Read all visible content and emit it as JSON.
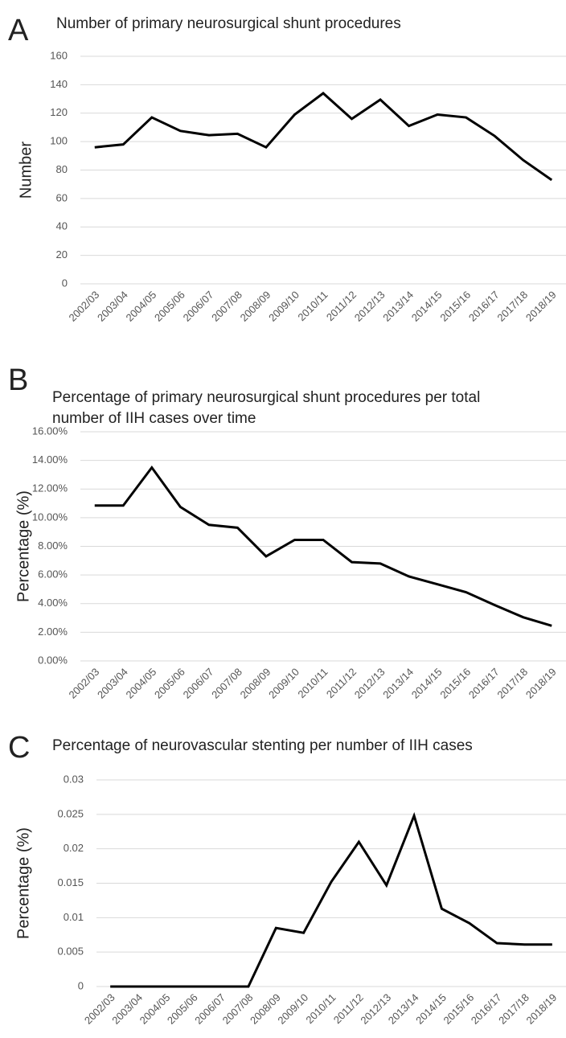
{
  "chart_data": [
    {
      "type": "line",
      "panel": "A",
      "title": [
        "Number of primary neurosurgical shunt procedures"
      ],
      "ylabel": "Number",
      "categories": [
        "2002/03",
        "2003/04",
        "2004/05",
        "2005/06",
        "2006/07",
        "2007/08",
        "2008/09",
        "2009/10",
        "2010/11",
        "2011/12",
        "2012/13",
        "2013/14",
        "2014/15",
        "2015/16",
        "2016/17",
        "2017/18",
        "2018/19"
      ],
      "values": [
        96,
        98,
        117,
        107.5,
        104.5,
        105.5,
        96,
        119,
        134,
        116,
        129.5,
        111,
        119,
        117,
        104,
        87,
        73
      ],
      "color": "#000000",
      "ylim": [
        0,
        160
      ],
      "yticks": [
        0,
        20,
        40,
        60,
        80,
        100,
        120,
        140,
        160
      ],
      "grid": true
    },
    {
      "type": "line",
      "panel": "B",
      "title": [
        "Percentage of primary neurosurgical shunt procedures per total",
        "number of IIH cases over time"
      ],
      "ylabel": "Percentage (%)",
      "categories": [
        "2002/03",
        "2003/04",
        "2004/05",
        "2005/06",
        "2006/07",
        "2007/08",
        "2008/09",
        "2009/10",
        "2010/11",
        "2011/12",
        "2012/13",
        "2013/14",
        "2014/15",
        "2015/16",
        "2016/17",
        "2017/18",
        "2018/19"
      ],
      "values": [
        10.85,
        10.85,
        13.5,
        10.75,
        9.5,
        9.3,
        7.3,
        8.45,
        8.45,
        6.9,
        6.8,
        5.9,
        5.35,
        4.8,
        3.9,
        3.05,
        2.45
      ],
      "color": "#000000",
      "ylim": [
        0,
        16
      ],
      "yticks": [
        {
          "value": 0,
          "label": "0.00%"
        },
        {
          "value": 2,
          "label": "2.00%"
        },
        {
          "value": 4,
          "label": "4.00%"
        },
        {
          "value": 6,
          "label": "6.00%"
        },
        {
          "value": 8,
          "label": "8.00%"
        },
        {
          "value": 10,
          "label": "10.00%"
        },
        {
          "value": 12,
          "label": "12.00%"
        },
        {
          "value": 14,
          "label": "14.00%"
        },
        {
          "value": 16,
          "label": "16.00%"
        }
      ],
      "grid": true
    },
    {
      "type": "line",
      "panel": "C",
      "title": [
        "Percentage of neurovascular stenting per number of IIH cases"
      ],
      "ylabel": "Percentage (%)",
      "categories": [
        "2002/03",
        "2003/04",
        "2004/05",
        "2005/06",
        "2006/07",
        "2007/08",
        "2008/09",
        "2009/10",
        "2010/11",
        "2011/12",
        "2012/13",
        "2013/14",
        "2014/15",
        "2015/16",
        "2016/17",
        "2017/18",
        "2018/19"
      ],
      "values": [
        0,
        0,
        0,
        0,
        0,
        0,
        0.0085,
        0.0078,
        0.0152,
        0.021,
        0.0147,
        0.0248,
        0.0113,
        0.0092,
        0.0063,
        0.0061,
        0.0061
      ],
      "color": "#000000",
      "ylim": [
        0,
        0.03
      ],
      "yticks": [
        0,
        0.005,
        0.01,
        0.015,
        0.02,
        0.025,
        0.03
      ],
      "grid": true
    }
  ]
}
